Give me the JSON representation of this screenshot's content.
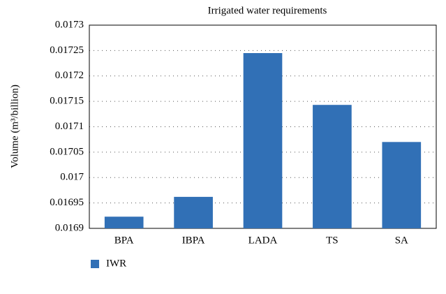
{
  "chart_data": {
    "type": "bar",
    "title": "Irrigated water requirements",
    "y_label": "Volume (m³/billion)",
    "categories": [
      "BPA",
      "IBPA",
      "LADA",
      "TS",
      "SA"
    ],
    "series": [
      {
        "name": "IWR",
        "color": "#3170b6",
        "values": [
          0.016923,
          0.016962,
          0.017245,
          0.017143,
          0.01707
        ]
      }
    ],
    "ylim": [
      0.0169,
      0.0173
    ],
    "yticks": [
      0.0169,
      0.01695,
      0.017,
      0.01705,
      0.0171,
      0.01715,
      0.0172,
      0.01725,
      0.0173
    ],
    "grid": true,
    "legend": "bottom-left"
  }
}
